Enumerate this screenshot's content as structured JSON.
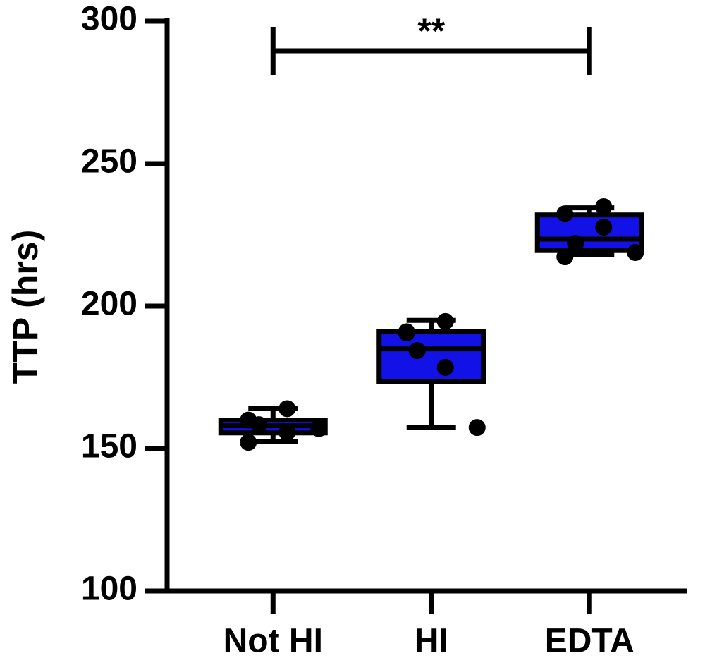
{
  "chart_data": {
    "type": "box",
    "y_label": "TTP (hrs)",
    "categories": [
      "Not HI",
      "HI",
      "EDTA"
    ],
    "color": "#1212e6",
    "ylim": [
      100,
      300
    ],
    "yticks": [
      100,
      150,
      200,
      250,
      300
    ],
    "boxes": [
      {
        "min": 152.5,
        "q1": 155.5,
        "median": 158,
        "q3": 160,
        "max": 164,
        "points": [
          160,
          152.2,
          158.4,
          155.7,
          164,
          157
        ]
      },
      {
        "min": 157.5,
        "q1": 173.5,
        "median": 185,
        "q3": 191,
        "max": 195,
        "points": [
          190.6,
          191,
          184.4,
          178.5,
          194.6,
          157.4
        ]
      },
      {
        "min": 218,
        "q1": 219.5,
        "median": 223.5,
        "q3": 232,
        "max": 234.5,
        "points": [
          232.4,
          217.3,
          222,
          234.9,
          227.7,
          218.8
        ]
      }
    ],
    "significance": {
      "label": "**"
    }
  }
}
